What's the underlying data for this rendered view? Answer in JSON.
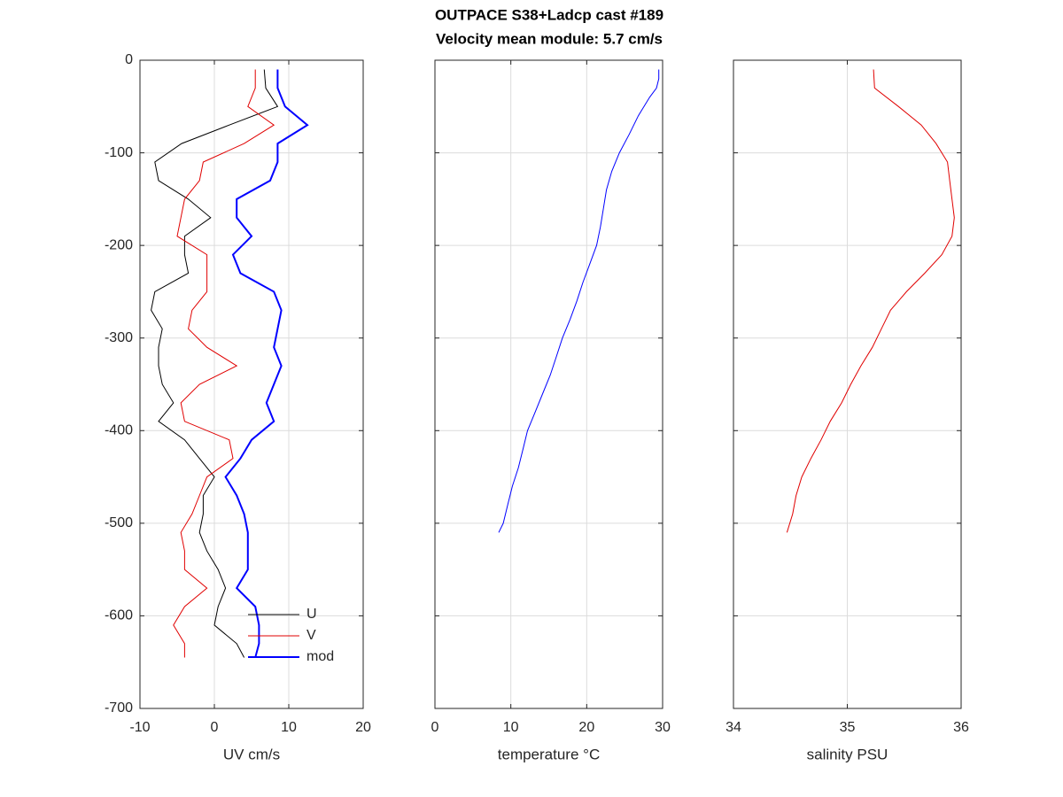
{
  "title": [
    "OUTPACE S38+Ladcp cast #189",
    "Velocity mean module:  5.7 cm/s"
  ],
  "chart_data": [
    {
      "type": "line",
      "xlabel": "UV cm/s",
      "xlim": [
        -10,
        20
      ],
      "xticks": [
        -10,
        0,
        10,
        20
      ],
      "ylim": [
        -700,
        0
      ],
      "yticks": [
        -700,
        -600,
        -500,
        -400,
        -300,
        -200,
        -100,
        0
      ],
      "ytick_labels": true,
      "grid": true,
      "legend": "southeast",
      "depth": [
        -10,
        -30,
        -50,
        -70,
        -90,
        -110,
        -130,
        -150,
        -170,
        -190,
        -210,
        -230,
        -250,
        -270,
        -290,
        -310,
        -330,
        -350,
        -370,
        -390,
        -410,
        -430,
        -450,
        -470,
        -490,
        -510,
        -530,
        -550,
        -570,
        -590,
        -610,
        -630,
        -645
      ],
      "series": [
        {
          "name": "U",
          "color": "#000000",
          "width": 1,
          "values": [
            6.7,
            6.9,
            8.5,
            2,
            -4.4,
            -8,
            -7.5,
            -3.5,
            -0.5,
            -4,
            -4,
            -3.5,
            -8,
            -8.5,
            -7,
            -7.5,
            -7.5,
            -7,
            -5.5,
            -7.5,
            -4,
            -2,
            0,
            -1.5,
            -1.5,
            -2,
            -1,
            0.5,
            1.5,
            0.5,
            0,
            3,
            4
          ]
        },
        {
          "name": "V",
          "color": "#e00000",
          "width": 1,
          "values": [
            5.5,
            5.5,
            4.5,
            8,
            4,
            -1.5,
            -2,
            -4,
            -4.5,
            -5,
            -1,
            -1,
            -1,
            -3,
            -3.5,
            -1,
            3,
            -2,
            -4.5,
            -4,
            2,
            2.5,
            -1,
            -2,
            -3,
            -4.5,
            -4,
            -4,
            -1,
            -4,
            -5.5,
            -4,
            -4
          ]
        },
        {
          "name": "mod",
          "color": "#0000ff",
          "width": 2,
          "values": [
            8.5,
            8.5,
            9.5,
            12.5,
            8.5,
            8.5,
            7.5,
            3,
            3,
            5,
            2.5,
            3.5,
            8,
            9,
            8.5,
            8,
            9,
            8,
            7,
            8,
            5,
            3.5,
            1.5,
            3,
            4,
            4.5,
            4.5,
            4.5,
            3,
            5.5,
            6,
            6,
            5.5
          ]
        }
      ]
    },
    {
      "type": "line",
      "xlabel": "temperature °C",
      "xlim": [
        0,
        30
      ],
      "xticks": [
        0,
        10,
        20,
        30
      ],
      "ylim": [
        -700,
        0
      ],
      "yticks": [
        -700,
        -600,
        -500,
        -400,
        -300,
        -200,
        -100,
        0
      ],
      "ytick_labels": false,
      "grid": true,
      "depth": [
        -10,
        -20,
        -30,
        -40,
        -60,
        -80,
        -100,
        -120,
        -140,
        -160,
        -180,
        -200,
        -220,
        -240,
        -260,
        -280,
        -300,
        -320,
        -340,
        -360,
        -380,
        -400,
        -420,
        -440,
        -460,
        -480,
        -500,
        -510
      ],
      "series": [
        {
          "color": "#0000ff",
          "width": 1,
          "values": [
            29.5,
            29.5,
            29.2,
            28.3,
            26.8,
            25.6,
            24.3,
            23.3,
            22.6,
            22.2,
            21.8,
            21.3,
            20.4,
            19.5,
            18.7,
            17.8,
            16.8,
            16,
            15.2,
            14.2,
            13.2,
            12.2,
            11.6,
            11,
            10.2,
            9.6,
            9,
            8.4
          ]
        }
      ]
    },
    {
      "type": "line",
      "xlabel": "salinity PSU",
      "xlim": [
        34,
        36
      ],
      "xticks": [
        34,
        35,
        36
      ],
      "ylim": [
        -700,
        0
      ],
      "yticks": [
        -700,
        -600,
        -500,
        -400,
        -300,
        -200,
        -100,
        0
      ],
      "ytick_labels": false,
      "grid": true,
      "depth": [
        -10,
        -30,
        -50,
        -70,
        -90,
        -110,
        -130,
        -150,
        -170,
        -190,
        -210,
        -230,
        -250,
        -270,
        -290,
        -310,
        -330,
        -350,
        -370,
        -390,
        -410,
        -430,
        -450,
        -470,
        -490,
        -510
      ],
      "series": [
        {
          "color": "#e00000",
          "width": 1,
          "values": [
            35.23,
            35.24,
            35.45,
            35.65,
            35.78,
            35.88,
            35.9,
            35.92,
            35.94,
            35.92,
            35.83,
            35.68,
            35.52,
            35.38,
            35.3,
            35.22,
            35.12,
            35.03,
            34.95,
            34.85,
            34.77,
            34.68,
            34.6,
            34.55,
            34.52,
            34.47
          ]
        }
      ]
    }
  ]
}
